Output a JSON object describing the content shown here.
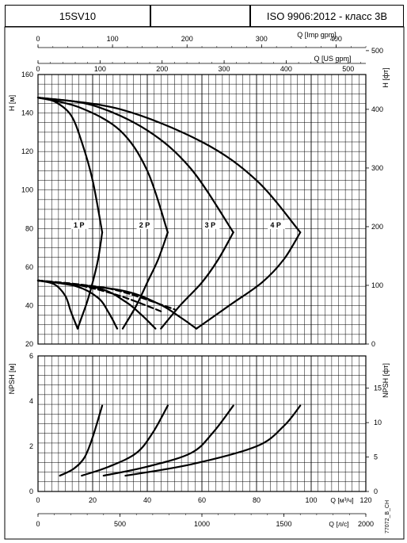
{
  "header": {
    "model": "15SV10",
    "blank": "",
    "standard": "ISO 9906:2012 - класс 3B"
  },
  "chart_data": [
    {
      "type": "line",
      "name_hint": "head",
      "xlabel": "Q [м³/ч]",
      "xlim": [
        0,
        120
      ],
      "ylabel_left": "H [м]",
      "ylim": [
        20,
        160
      ],
      "ylabel_right": "H [фт]",
      "right_ticks": [
        "0",
        "100",
        "200",
        "300",
        "400",
        "500"
      ],
      "top_axes": [
        {
          "label": "Q [Imp gpm]",
          "ticks": [
            "0",
            "100",
            "200",
            "300",
            "400"
          ]
        },
        {
          "label": "Q [US gpm]",
          "ticks": [
            "0",
            "100",
            "200",
            "300",
            "400",
            "500"
          ]
        }
      ],
      "left_ticks": [
        "20",
        "40",
        "60",
        "80",
        "100",
        "120",
        "140",
        "160"
      ],
      "series": [
        {
          "name": "1 P",
          "x": [
            0,
            6,
            12,
            16,
            20,
            23.5
          ],
          "y": [
            148,
            146,
            139,
            125,
            105,
            78
          ]
        },
        {
          "name": "2 P",
          "x": [
            0,
            15,
            30,
            40,
            47.5
          ],
          "y": [
            148,
            143,
            131,
            110,
            78
          ]
        },
        {
          "name": "3 P",
          "x": [
            0,
            20,
            40,
            56,
            71.5
          ],
          "y": [
            148,
            144,
            131,
            111,
            78
          ]
        },
        {
          "name": "4 P",
          "x": [
            0,
            30,
            60,
            80,
            96
          ],
          "y": [
            148,
            142,
            125,
            105,
            78
          ]
        }
      ],
      "power_limit_curves": [
        {
          "x": [
            23.5,
            22,
            20,
            18,
            16,
            14.5
          ],
          "y": [
            78,
            64,
            52,
            42,
            34,
            28
          ]
        },
        {
          "x": [
            47.5,
            44,
            40,
            36,
            31
          ],
          "y": [
            78,
            64,
            52,
            40,
            28
          ]
        },
        {
          "x": [
            71.5,
            66,
            60,
            52,
            45
          ],
          "y": [
            78,
            64,
            52,
            40,
            28
          ]
        },
        {
          "x": [
            96,
            90,
            82,
            70,
            58
          ],
          "y": [
            78,
            64,
            52,
            40,
            28
          ]
        }
      ],
      "min_flow_curves": [
        {
          "x": [
            0,
            6,
            10,
            12,
            14.5
          ],
          "y": [
            53,
            51,
            45,
            37,
            28
          ]
        },
        {
          "x": [
            0,
            14,
            22,
            26,
            29
          ],
          "y": [
            53,
            50,
            44,
            36,
            28
          ]
        },
        {
          "x": [
            0,
            22,
            32,
            38,
            43
          ],
          "y": [
            53,
            49,
            42,
            35,
            28
          ]
        },
        {
          "x": [
            0,
            30,
            44,
            52,
            58
          ],
          "y": [
            53,
            48,
            41,
            34,
            28
          ]
        }
      ],
      "dashed_curves": [
        {
          "x": [
            0,
            15,
            30,
            45
          ],
          "y": [
            53,
            50.5,
            45,
            37
          ]
        },
        {
          "x": [
            0,
            15,
            30,
            50
          ],
          "y": [
            53,
            51,
            47.5,
            38
          ]
        }
      ]
    },
    {
      "type": "line",
      "name_hint": "npsh",
      "xlabel": "Q [м³/ч]",
      "xlim": [
        0,
        120
      ],
      "ylabel_left": "NPSH [м]",
      "ylim": [
        0,
        6
      ],
      "ylabel_right": "NPSH [фт]",
      "left_ticks": [
        "0",
        "2",
        "4",
        "6"
      ],
      "right_ticks": [
        "0",
        "5",
        "10",
        "15"
      ],
      "bottom_axes": [
        {
          "label": "Q [м³/ч]",
          "ticks": [
            "0",
            "20",
            "40",
            "60",
            "80",
            "100",
            "120"
          ]
        },
        {
          "label": "Q [л/с]",
          "ticks": [
            "0",
            "500",
            "1000",
            "1500",
            "2000"
          ]
        }
      ],
      "series": [
        {
          "name": "1 P",
          "x": [
            8,
            13,
            17,
            20,
            23.5
          ],
          "y": [
            0.7,
            1.0,
            1.5,
            2.4,
            3.8
          ]
        },
        {
          "name": "2 P",
          "x": [
            16,
            26,
            36,
            42,
            47.5
          ],
          "y": [
            0.7,
            1.1,
            1.7,
            2.6,
            3.8
          ]
        },
        {
          "name": "3 P",
          "x": [
            24,
            40,
            56,
            64,
            71.5
          ],
          "y": [
            0.7,
            1.1,
            1.7,
            2.6,
            3.8
          ]
        },
        {
          "name": "4 P",
          "x": [
            32,
            56,
            80,
            90,
            96
          ],
          "y": [
            0.7,
            1.2,
            2.0,
            2.9,
            3.8
          ]
        }
      ]
    }
  ],
  "labels": {
    "curve_1": "1 P",
    "curve_2": "2 P",
    "curve_3": "3 P",
    "curve_4": "4 P",
    "h_m": "H [м]",
    "h_ft": "H [фт]",
    "npsh_m": "NPSH [м]",
    "npsh_ft": "NPSH [фт]",
    "q_imp": "Q [Imp gpm]",
    "q_us": "Q [US gpm]",
    "q_m3h": "Q [м³/ч]",
    "q_ls": "Q [л/с]",
    "code": "77072_B_CH"
  }
}
